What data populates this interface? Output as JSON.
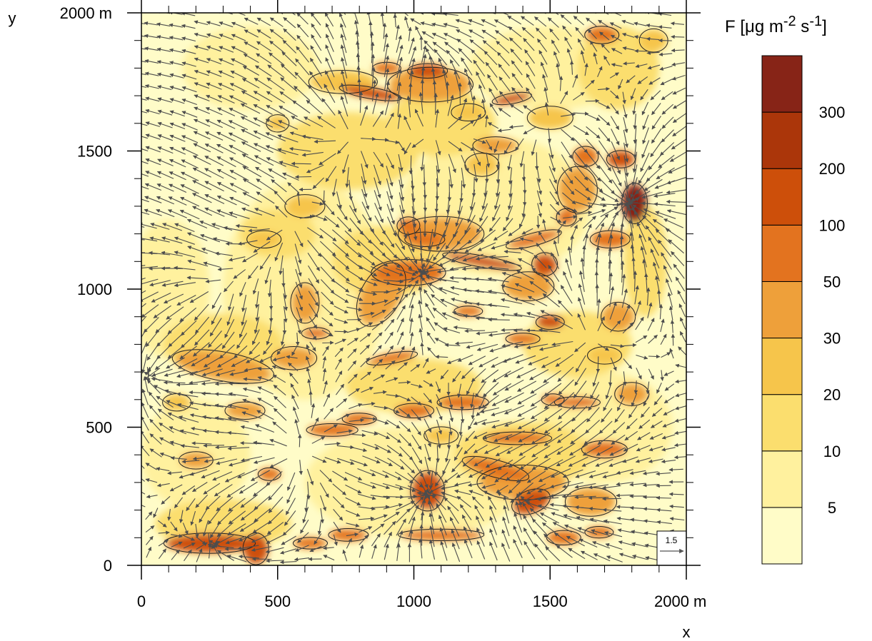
{
  "chart_data": {
    "type": "heatmap",
    "title": "",
    "xlabel": "x",
    "ylabel": "y",
    "x_unit": "m",
    "y_unit": "m",
    "xlim": [
      0,
      2000
    ],
    "ylim": [
      0,
      2000
    ],
    "x_ticks": [
      {
        "value": 0,
        "label": "0"
      },
      {
        "value": 500,
        "label": "500"
      },
      {
        "value": 1000,
        "label": "1000"
      },
      {
        "value": 1500,
        "label": "1500"
      },
      {
        "value": 2000,
        "label": "2000 m"
      }
    ],
    "y_ticks": [
      {
        "value": 0,
        "label": "0"
      },
      {
        "value": 500,
        "label": "500"
      },
      {
        "value": 1000,
        "label": "1000"
      },
      {
        "value": 1500,
        "label": "1500"
      },
      {
        "value": 2000,
        "label": "2000 m"
      }
    ],
    "minor_tick_step": 100,
    "colorbar": {
      "title_html": "F [μg m<sup>-2</sup> s<sup>-1</sup>]",
      "levels": [
        5,
        10,
        20,
        30,
        50,
        100,
        200,
        300
      ],
      "level_labels": [
        "5",
        "10",
        "20",
        "30",
        "50",
        "100",
        "200",
        "300"
      ],
      "colors": [
        "#fffcc8",
        "#fff19e",
        "#fbde6e",
        "#f6c54b",
        "#eea03a",
        "#e3731f",
        "#cd4f0a",
        "#ab360a",
        "#872417"
      ]
    },
    "reference_vector": {
      "magnitude": 1.5,
      "label": "1.5"
    },
    "features": [
      {
        "x": 250,
        "y": 80,
        "level": 6,
        "rx": 160,
        "ry": 35,
        "rot": 0
      },
      {
        "x": 420,
        "y": 60,
        "level": 6,
        "rx": 45,
        "ry": 55,
        "rot": 0
      },
      {
        "x": 1050,
        "y": 270,
        "level": 6,
        "rx": 60,
        "ry": 70,
        "rot": 0
      },
      {
        "x": 1430,
        "y": 230,
        "level": 6,
        "rx": 70,
        "ry": 40,
        "rot": 20
      },
      {
        "x": 1300,
        "y": 350,
        "level": 5,
        "rx": 120,
        "ry": 30,
        "rot": -15
      },
      {
        "x": 1100,
        "y": 110,
        "level": 5,
        "rx": 150,
        "ry": 20,
        "rot": 0
      },
      {
        "x": 1810,
        "y": 1310,
        "level": 8,
        "rx": 45,
        "ry": 70,
        "rot": 0
      },
      {
        "x": 1760,
        "y": 1470,
        "level": 6,
        "rx": 50,
        "ry": 30,
        "rot": 0
      },
      {
        "x": 1050,
        "y": 1790,
        "level": 6,
        "rx": 70,
        "ry": 25,
        "rot": 0
      },
      {
        "x": 840,
        "y": 1710,
        "level": 6,
        "rx": 110,
        "ry": 20,
        "rot": -10
      },
      {
        "x": 1360,
        "y": 1690,
        "level": 6,
        "rx": 70,
        "ry": 18,
        "rot": 10
      },
      {
        "x": 1250,
        "y": 1100,
        "level": 6,
        "rx": 140,
        "ry": 20,
        "rot": -10
      },
      {
        "x": 1480,
        "y": 1090,
        "level": 6,
        "rx": 45,
        "ry": 40,
        "rot": 0
      },
      {
        "x": 1500,
        "y": 880,
        "level": 6,
        "rx": 50,
        "ry": 25,
        "rot": 0
      },
      {
        "x": 980,
        "y": 1060,
        "level": 5,
        "rx": 130,
        "ry": 45,
        "rot": 0
      },
      {
        "x": 980,
        "y": 1230,
        "level": 5,
        "rx": 40,
        "ry": 30,
        "rot": 0
      },
      {
        "x": 1040,
        "y": 1180,
        "level": 5,
        "rx": 70,
        "ry": 25,
        "rot": 0
      },
      {
        "x": 1440,
        "y": 1180,
        "level": 5,
        "rx": 100,
        "ry": 22,
        "rot": 15
      },
      {
        "x": 1630,
        "y": 1480,
        "level": 5,
        "rx": 45,
        "ry": 35,
        "rot": 0
      },
      {
        "x": 1720,
        "y": 1180,
        "level": 5,
        "rx": 70,
        "ry": 30,
        "rot": 0
      },
      {
        "x": 1690,
        "y": 1920,
        "level": 5,
        "rx": 60,
        "ry": 30,
        "rot": 0
      },
      {
        "x": 1560,
        "y": 1260,
        "level": 5,
        "rx": 35,
        "ry": 30,
        "rot": 0
      },
      {
        "x": 920,
        "y": 750,
        "level": 5,
        "rx": 90,
        "ry": 18,
        "rot": 10
      },
      {
        "x": 1600,
        "y": 590,
        "level": 5,
        "rx": 80,
        "ry": 20,
        "rot": 0
      },
      {
        "x": 1700,
        "y": 420,
        "level": 5,
        "rx": 80,
        "ry": 30,
        "rot": 0
      },
      {
        "x": 1180,
        "y": 590,
        "level": 5,
        "rx": 90,
        "ry": 25,
        "rot": 0
      },
      {
        "x": 1380,
        "y": 460,
        "level": 5,
        "rx": 120,
        "ry": 22,
        "rot": 0
      },
      {
        "x": 1000,
        "y": 560,
        "level": 5,
        "rx": 70,
        "ry": 25,
        "rot": 0
      },
      {
        "x": 700,
        "y": 490,
        "level": 5,
        "rx": 90,
        "ry": 22,
        "rot": 0
      },
      {
        "x": 800,
        "y": 530,
        "level": 5,
        "rx": 60,
        "ry": 20,
        "rot": 0
      },
      {
        "x": 1200,
        "y": 920,
        "level": 5,
        "rx": 50,
        "ry": 18,
        "rot": 0
      },
      {
        "x": 640,
        "y": 840,
        "level": 5,
        "rx": 50,
        "ry": 20,
        "rot": 0
      },
      {
        "x": 1510,
        "y": 600,
        "level": 5,
        "rx": 40,
        "ry": 20,
        "rot": 0
      },
      {
        "x": 1400,
        "y": 820,
        "level": 5,
        "rx": 60,
        "ry": 20,
        "rot": 0
      },
      {
        "x": 1550,
        "y": 100,
        "level": 5,
        "rx": 60,
        "ry": 25,
        "rot": 0
      },
      {
        "x": 1680,
        "y": 120,
        "level": 5,
        "rx": 50,
        "ry": 20,
        "rot": 0
      },
      {
        "x": 900,
        "y": 1800,
        "level": 5,
        "rx": 50,
        "ry": 20,
        "rot": 0
      },
      {
        "x": 760,
        "y": 110,
        "level": 5,
        "rx": 70,
        "ry": 22,
        "rot": 0
      },
      {
        "x": 620,
        "y": 80,
        "level": 5,
        "rx": 60,
        "ry": 20,
        "rot": 0
      },
      {
        "x": 470,
        "y": 330,
        "level": 5,
        "rx": 40,
        "ry": 22,
        "rot": 0
      },
      {
        "x": 1060,
        "y": 1740,
        "level": 4,
        "rx": 150,
        "ry": 60,
        "rot": 0
      },
      {
        "x": 300,
        "y": 720,
        "level": 4,
        "rx": 180,
        "ry": 50,
        "rot": -10
      },
      {
        "x": 560,
        "y": 750,
        "level": 4,
        "rx": 80,
        "ry": 40,
        "rot": 0
      },
      {
        "x": 1100,
        "y": 1200,
        "level": 4,
        "rx": 150,
        "ry": 60,
        "rot": 0
      },
      {
        "x": 1600,
        "y": 1360,
        "level": 4,
        "rx": 70,
        "ry": 80,
        "rot": 0
      },
      {
        "x": 1400,
        "y": 300,
        "level": 4,
        "rx": 160,
        "ry": 60,
        "rot": 0
      },
      {
        "x": 1650,
        "y": 230,
        "level": 4,
        "rx": 90,
        "ry": 50,
        "rot": 0
      },
      {
        "x": 880,
        "y": 980,
        "level": 4,
        "rx": 70,
        "ry": 120,
        "rot": -30
      },
      {
        "x": 600,
        "y": 950,
        "level": 4,
        "rx": 50,
        "ry": 70,
        "rot": 0
      },
      {
        "x": 1300,
        "y": 1520,
        "level": 4,
        "rx": 80,
        "ry": 30,
        "rot": 0
      },
      {
        "x": 1750,
        "y": 900,
        "level": 4,
        "rx": 60,
        "ry": 50,
        "rot": 0
      },
      {
        "x": 1800,
        "y": 620,
        "level": 4,
        "rx": 60,
        "ry": 40,
        "rot": 0
      },
      {
        "x": 200,
        "y": 380,
        "level": 4,
        "rx": 60,
        "ry": 30,
        "rot": 0
      },
      {
        "x": 380,
        "y": 560,
        "level": 4,
        "rx": 70,
        "ry": 30,
        "rot": 0
      },
      {
        "x": 1420,
        "y": 1010,
        "level": 4,
        "rx": 90,
        "ry": 50,
        "rot": 0
      },
      {
        "x": 740,
        "y": 1750,
        "level": 3,
        "rx": 120,
        "ry": 40,
        "rot": 0
      },
      {
        "x": 600,
        "y": 1300,
        "level": 3,
        "rx": 70,
        "ry": 40,
        "rot": 0
      },
      {
        "x": 1500,
        "y": 1620,
        "level": 3,
        "rx": 80,
        "ry": 40,
        "rot": 0
      },
      {
        "x": 1250,
        "y": 1450,
        "level": 3,
        "rx": 60,
        "ry": 40,
        "rot": 0
      },
      {
        "x": 450,
        "y": 1180,
        "level": 3,
        "rx": 60,
        "ry": 30,
        "rot": 0
      },
      {
        "x": 130,
        "y": 590,
        "level": 3,
        "rx": 50,
        "ry": 30,
        "rot": 0
      },
      {
        "x": 1700,
        "y": 760,
        "level": 3,
        "rx": 60,
        "ry": 30,
        "rot": 0
      },
      {
        "x": 1100,
        "y": 470,
        "level": 3,
        "rx": 60,
        "ry": 30,
        "rot": 0
      },
      {
        "x": 500,
        "y": 1600,
        "level": 3,
        "rx": 40,
        "ry": 30,
        "rot": 0
      },
      {
        "x": 1880,
        "y": 1900,
        "level": 3,
        "rx": 50,
        "ry": 40,
        "rot": 0
      },
      {
        "x": 1200,
        "y": 1640,
        "level": 3,
        "rx": 60,
        "ry": 30,
        "rot": 0
      },
      {
        "x": 760,
        "y": 1500,
        "level": 2,
        "rx": 260,
        "ry": 140,
        "rot": 0
      },
      {
        "x": 1100,
        "y": 1600,
        "level": 2,
        "rx": 200,
        "ry": 120,
        "rot": 0
      },
      {
        "x": 500,
        "y": 1200,
        "level": 2,
        "rx": 140,
        "ry": 90,
        "rot": 0
      },
      {
        "x": 1600,
        "y": 800,
        "level": 2,
        "rx": 200,
        "ry": 120,
        "rot": 0
      },
      {
        "x": 300,
        "y": 800,
        "level": 2,
        "rx": 220,
        "ry": 110,
        "rot": 0
      },
      {
        "x": 1000,
        "y": 650,
        "level": 2,
        "rx": 250,
        "ry": 100,
        "rot": 0
      },
      {
        "x": 1400,
        "y": 400,
        "level": 2,
        "rx": 250,
        "ry": 120,
        "rot": 0
      },
      {
        "x": 300,
        "y": 150,
        "level": 2,
        "rx": 250,
        "ry": 90,
        "rot": 0
      },
      {
        "x": 1750,
        "y": 1800,
        "level": 2,
        "rx": 150,
        "ry": 150,
        "rot": 0
      },
      {
        "x": 1850,
        "y": 1100,
        "level": 2,
        "rx": 80,
        "ry": 200,
        "rot": 0
      },
      {
        "x": 900,
        "y": 1100,
        "level": 2,
        "rx": 200,
        "ry": 130,
        "rot": 0
      },
      {
        "x": 100,
        "y": 1000,
        "level": 1,
        "rx": 150,
        "ry": 250,
        "rot": 0
      },
      {
        "x": 600,
        "y": 1000,
        "level": 1,
        "rx": 300,
        "ry": 400,
        "rot": 0
      },
      {
        "x": 1300,
        "y": 1300,
        "level": 1,
        "rx": 350,
        "ry": 250,
        "rot": 0
      },
      {
        "x": 1000,
        "y": 300,
        "level": 1,
        "rx": 400,
        "ry": 200,
        "rot": 0
      },
      {
        "x": 1700,
        "y": 500,
        "level": 1,
        "rx": 250,
        "ry": 200,
        "rot": 0
      },
      {
        "x": 400,
        "y": 1800,
        "level": 1,
        "rx": 250,
        "ry": 150,
        "rot": 0
      },
      {
        "x": 1500,
        "y": 1800,
        "level": 1,
        "rx": 300,
        "ry": 150,
        "rot": 0
      },
      {
        "x": 200,
        "y": 400,
        "level": 1,
        "rx": 200,
        "ry": 200,
        "rot": 0
      }
    ],
    "flow_centers": [
      {
        "x": 760,
        "y": 1560,
        "kind": "source",
        "s": 1.0
      },
      {
        "x": 1080,
        "y": 1570,
        "kind": "source",
        "s": 0.8
      },
      {
        "x": 540,
        "y": 1230,
        "kind": "source",
        "s": 0.8
      },
      {
        "x": 1620,
        "y": 820,
        "kind": "source",
        "s": 0.7
      },
      {
        "x": 260,
        "y": 1000,
        "kind": "source",
        "s": 0.6
      },
      {
        "x": 560,
        "y": 400,
        "kind": "source",
        "s": 0.6
      },
      {
        "x": 1800,
        "y": 1310,
        "kind": "sink",
        "s": 1.0
      },
      {
        "x": 1040,
        "y": 1080,
        "kind": "sink",
        "s": 0.9
      },
      {
        "x": 1040,
        "y": 250,
        "kind": "sink",
        "s": 0.9
      },
      {
        "x": 1450,
        "y": 220,
        "kind": "sink",
        "s": 0.7
      },
      {
        "x": 60,
        "y": 700,
        "kind": "sink",
        "s": 0.7
      },
      {
        "x": 300,
        "y": 80,
        "kind": "sink",
        "s": 0.6
      },
      {
        "x": 1060,
        "y": 1790,
        "kind": "sink",
        "s": 0.5
      },
      {
        "x": 1500,
        "y": 1600,
        "kind": "source",
        "s": 0.5
      },
      {
        "x": 1300,
        "y": 600,
        "kind": "sink",
        "s": 0.5
      }
    ],
    "background_flow": {
      "u": -0.35,
      "v": 0.05
    }
  }
}
